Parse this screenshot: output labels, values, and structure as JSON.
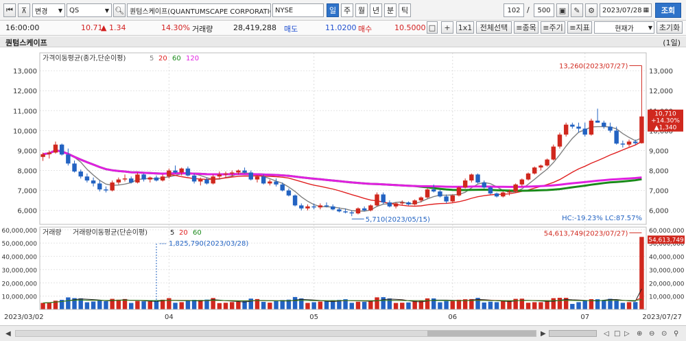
{
  "toolbar": {
    "change_label": "변경",
    "symbol": "QS",
    "company_name": "퀀텀스케이프(QUANTUMSCAPE CORPORATION)",
    "exchange": "NYSE",
    "periods": [
      "일",
      "주",
      "월",
      "년",
      "분",
      "틱"
    ],
    "active_period": "일",
    "count": "102",
    "separator": "/",
    "total": "500",
    "date": "2023/07/28",
    "search_label": "조회"
  },
  "quote": {
    "time": "16:00:00",
    "price": "10.71",
    "change": "▲ 1.34",
    "change_pct": "14.30%",
    "volume_label": "거래량",
    "volume": "28,419,288",
    "ask_label": "매도",
    "ask": "11.0200",
    "bid_label": "매수",
    "bid": "10.5000",
    "plus_label": "+",
    "layout_label": "1x1",
    "select_all_label": "전체선택",
    "item_label": "≡종목",
    "cycle_label": "≡주기",
    "indicator_label": "≡지표",
    "price_type": "현재가",
    "reset_label": "초기화"
  },
  "panel": {
    "stock_name": "퀀텀스케이프",
    "period_label": "(1일)"
  },
  "chart_data": {
    "type": "candlestick",
    "symbol": "QS",
    "x_start": "2023/03/02",
    "x_end": "2023/07/27",
    "month_labels": [
      "04",
      "05",
      "06",
      "07"
    ],
    "price_panel": {
      "legend": "가격이동평균(종가,단순이평)",
      "ma_periods": [
        "5",
        "20",
        "60",
        "120"
      ],
      "ma_colors": [
        "#808080",
        "#e02020",
        "#1a8a1a",
        "#e020e0"
      ],
      "yticks": [
        6000,
        7000,
        8000,
        9000,
        10000,
        11000,
        12000,
        13000
      ],
      "ytick_labels": [
        "6,000",
        "7,000",
        "8,000",
        "9,000",
        "10,000",
        "11,000",
        "12,000",
        "13,000"
      ],
      "ylim": [
        5300,
        13900
      ],
      "high_annotation": "13,260(2023/07/27)",
      "low_annotation": "5,710(2023/05/15)",
      "last_tag": [
        "10,710",
        "+14.30%",
        "▲1,340"
      ],
      "hc_lc": "HC:-19.23%  LC:87.57%",
      "candles": [
        [
          8680,
          8900,
          8480,
          8820
        ],
        [
          8820,
          9000,
          8600,
          8900
        ],
        [
          8900,
          9450,
          8850,
          9300
        ],
        [
          9300,
          9350,
          8750,
          8800
        ],
        [
          8800,
          9100,
          8250,
          8350
        ],
        [
          8350,
          8500,
          7900,
          7950
        ],
        [
          7950,
          8050,
          7600,
          7700
        ],
        [
          7700,
          7850,
          7400,
          7500
        ],
        [
          7500,
          7650,
          7200,
          7350
        ],
        [
          7350,
          7500,
          6950,
          7050
        ],
        [
          7050,
          7200,
          6900,
          7000
        ],
        [
          7000,
          7500,
          6950,
          7400
        ],
        [
          7400,
          7650,
          7300,
          7550
        ],
        [
          7550,
          7800,
          7450,
          7600
        ],
        [
          7600,
          7700,
          7350,
          7400
        ],
        [
          7400,
          7900,
          7350,
          7800
        ],
        [
          7800,
          7850,
          7450,
          7550
        ],
        [
          7550,
          7700,
          7400,
          7650
        ],
        [
          7650,
          7750,
          7450,
          7500
        ],
        [
          7500,
          7800,
          7450,
          7700
        ],
        [
          7700,
          8100,
          7600,
          8000
        ],
        [
          8000,
          8250,
          7850,
          7900
        ],
        [
          7900,
          8150,
          7750,
          8100
        ],
        [
          8100,
          8200,
          7700,
          7750
        ],
        [
          7750,
          7850,
          7350,
          7450
        ],
        [
          7450,
          7650,
          7250,
          7550
        ],
        [
          7550,
          7650,
          7300,
          7350
        ],
        [
          7350,
          7800,
          7300,
          7700
        ],
        [
          7700,
          7950,
          7600,
          7800
        ],
        [
          7800,
          7950,
          7650,
          7850
        ],
        [
          7850,
          8000,
          7700,
          7900
        ],
        [
          7900,
          8050,
          7800,
          8000
        ],
        [
          8000,
          8150,
          7850,
          7900
        ],
        [
          7900,
          8000,
          7500,
          7550
        ],
        [
          7550,
          7750,
          7400,
          7700
        ],
        [
          7700,
          7800,
          7300,
          7350
        ],
        [
          7350,
          7550,
          7250,
          7450
        ],
        [
          7450,
          7600,
          7200,
          7300
        ],
        [
          7300,
          7400,
          6950,
          7000
        ],
        [
          7000,
          7100,
          6700,
          6750
        ],
        [
          6750,
          6800,
          6200,
          6250
        ],
        [
          6250,
          6350,
          6000,
          6100
        ],
        [
          6100,
          6300,
          6000,
          6200
        ],
        [
          6200,
          6350,
          6050,
          6150
        ],
        [
          6150,
          6350,
          6050,
          6250
        ],
        [
          6250,
          6400,
          6150,
          6200
        ],
        [
          6200,
          6300,
          6000,
          6050
        ],
        [
          6050,
          6150,
          5900,
          5950
        ],
        [
          5950,
          6100,
          5850,
          5900
        ],
        [
          5900,
          6000,
          5710,
          5850
        ],
        [
          5850,
          6150,
          5800,
          6100
        ],
        [
          6100,
          6200,
          5950,
          6000
        ],
        [
          6000,
          6300,
          5950,
          6250
        ],
        [
          6250,
          6900,
          6200,
          6800
        ],
        [
          6800,
          6900,
          6300,
          6400
        ],
        [
          6400,
          6500,
          6150,
          6200
        ],
        [
          6200,
          6400,
          6100,
          6350
        ],
        [
          6350,
          6500,
          6250,
          6400
        ],
        [
          6400,
          6450,
          6250,
          6300
        ],
        [
          6300,
          6550,
          6250,
          6500
        ],
        [
          6500,
          6700,
          6400,
          6650
        ],
        [
          6650,
          7100,
          6600,
          7050
        ],
        [
          7050,
          7300,
          6900,
          6950
        ],
        [
          6950,
          7050,
          6650,
          6700
        ],
        [
          6700,
          6800,
          6350,
          6450
        ],
        [
          6450,
          6800,
          6400,
          6750
        ],
        [
          6750,
          7200,
          6700,
          7150
        ],
        [
          7150,
          7600,
          7100,
          7500
        ],
        [
          7500,
          7850,
          7400,
          7800
        ],
        [
          7800,
          7850,
          7350,
          7400
        ],
        [
          7400,
          7500,
          7100,
          7150
        ],
        [
          7150,
          7200,
          6800,
          6850
        ],
        [
          6850,
          6900,
          6650,
          6700
        ],
        [
          6700,
          6950,
          6650,
          6900
        ],
        [
          6900,
          7050,
          6750,
          6950
        ],
        [
          6950,
          7350,
          6900,
          7300
        ],
        [
          7300,
          7600,
          7200,
          7550
        ],
        [
          7550,
          7900,
          7500,
          7850
        ],
        [
          7850,
          8200,
          7800,
          8150
        ],
        [
          8150,
          8300,
          8000,
          8250
        ],
        [
          8250,
          8600,
          8200,
          8550
        ],
        [
          8550,
          9300,
          8500,
          9200
        ],
        [
          9200,
          9900,
          9100,
          9800
        ],
        [
          9800,
          10400,
          9700,
          10300
        ],
        [
          10300,
          10400,
          10100,
          10200
        ],
        [
          10200,
          10400,
          9900,
          10100
        ],
        [
          10100,
          10400,
          9700,
          9800
        ],
        [
          9800,
          10600,
          9750,
          10500
        ],
        [
          10500,
          11100,
          10400,
          10400
        ],
        [
          10400,
          10500,
          10100,
          10200
        ],
        [
          10200,
          10400,
          9900,
          10000
        ],
        [
          10000,
          10200,
          9300,
          9350
        ],
        [
          9350,
          9500,
          9150,
          9300
        ],
        [
          9300,
          9550,
          9200,
          9450
        ],
        [
          9450,
          9550,
          9300,
          9370
        ],
        [
          9370,
          13260,
          9350,
          10710
        ]
      ]
    },
    "volume_panel": {
      "legend": "거래량",
      "ma_legend": "거래량이동평균(단순이평)",
      "ma_periods": [
        "5",
        "20",
        "60"
      ],
      "ma_colors": [
        "#222222",
        "#e02020",
        "#1a8a1a"
      ],
      "yticks": [
        10000000,
        20000000,
        30000000,
        40000000,
        50000000,
        60000000
      ],
      "ytick_labels": [
        "10,000,000",
        "20,000,000",
        "30,000,000",
        "40,000,000",
        "50,000,000",
        "60,000,000"
      ],
      "ylim": [
        0,
        62000000
      ],
      "max_annotation": "54,613,749(2023/07/27)",
      "marker_annotation": "1,825,790(2023/03/28)",
      "last_tag": "54,613,749"
    }
  }
}
